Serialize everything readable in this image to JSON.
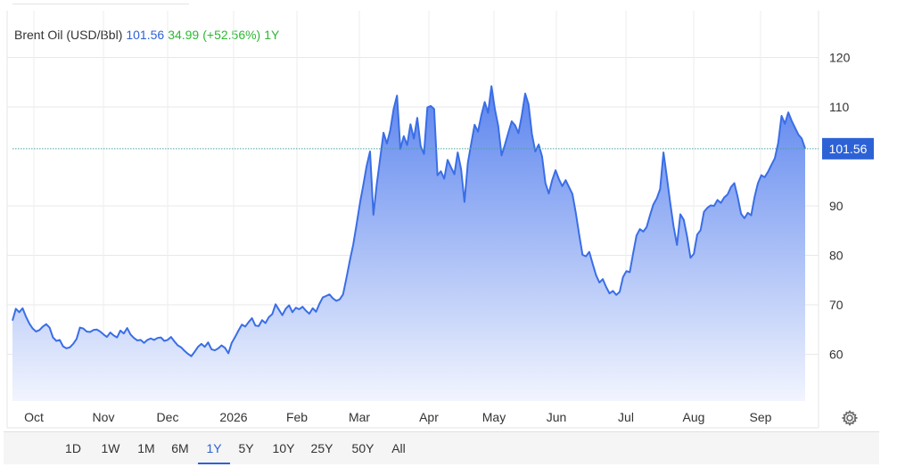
{
  "legend": {
    "name": "Brent Oil (USD/Bbl)",
    "price": "101.56",
    "change": "34.99",
    "percent": "(+52.56%)",
    "period": "1Y"
  },
  "ranges": {
    "items": [
      "1D",
      "1W",
      "1M",
      "6M",
      "1Y",
      "5Y",
      "10Y",
      "25Y",
      "50Y",
      "All"
    ],
    "active": "1Y"
  },
  "settings_icon": "gear-icon",
  "colors": {
    "line": "#3a6ee6",
    "fill_top": "#5b84ee",
    "fill_bottom": "#f2f5fe",
    "badge": "#2d62d6",
    "positive": "#2db832"
  },
  "chart_data": {
    "type": "area",
    "title": "",
    "xlabel": "",
    "ylabel": "",
    "x_tick_labels": [
      "Oct",
      "Nov",
      "Dec",
      "2026",
      "Feb",
      "Mar",
      "Apr",
      "May",
      "Jun",
      "Jul",
      "Aug",
      "Sep"
    ],
    "y_tick_labels": [
      "120",
      "110",
      "90",
      "80",
      "70",
      "60"
    ],
    "ylim": [
      51,
      122
    ],
    "grid": true,
    "last_value_label": "101.56",
    "series": [
      {
        "values": [
          66.8,
          69.2,
          68.5,
          69.3,
          67.6,
          66.2,
          65.2,
          64.6,
          64.9,
          65.6,
          66.1,
          65.4,
          63.4,
          62.7,
          62.9,
          61.6,
          61.2,
          61.4,
          62.1,
          63.1,
          65.4,
          65.2,
          64.6,
          64.5,
          64.9,
          65.0,
          64.6,
          64.0,
          63.5,
          64.4,
          63.8,
          63.4,
          64.8,
          64.2,
          65.3,
          64.0,
          63.3,
          62.8,
          62.9,
          62.3,
          62.9,
          63.2,
          62.9,
          63.3,
          63.4,
          62.7,
          62.9,
          63.5,
          62.6,
          61.8,
          61.4,
          60.7,
          60.1,
          59.6,
          60.5,
          61.5,
          62.1,
          61.5,
          62.4,
          61.0,
          60.8,
          61.2,
          61.8,
          61.3,
          60.2,
          62.3,
          63.5,
          64.8,
          66.0,
          65.6,
          66.5,
          67.3,
          65.8,
          65.7,
          66.9,
          66.3,
          67.5,
          68.1,
          70.1,
          69.0,
          67.9,
          69.2,
          69.9,
          68.5,
          69.4,
          69.1,
          69.6,
          68.8,
          68.2,
          69.3,
          68.6,
          70.2,
          71.5,
          71.8,
          72.1,
          71.3,
          70.8,
          71.1,
          72.1,
          75.4,
          78.9,
          82.1,
          86.2,
          90.5,
          94.2,
          98.1,
          101.0,
          88.2,
          94.4,
          99.6,
          104.8,
          102.6,
          105.3,
          109.6,
          112.3,
          101.5,
          104.1,
          102.3,
          106.5,
          103.6,
          107.8,
          102.1,
          100.5,
          109.9,
          110.2,
          109.6,
          96.2,
          97.0,
          95.5,
          99.3,
          97.8,
          96.4,
          100.8,
          97.4,
          90.8,
          98.7,
          102.6,
          106.4,
          105.0,
          108.3,
          111.0,
          108.8,
          114.2,
          109.6,
          106.2,
          100.2,
          102.4,
          104.8,
          107.1,
          106.3,
          104.7,
          108.3,
          112.7,
          110.5,
          104.5,
          101.0,
          102.4,
          100.0,
          94.6,
          92.5,
          95.2,
          97.2,
          95.4,
          94.0,
          95.2,
          93.8,
          92.4,
          88.6,
          84.2,
          80.1,
          79.8,
          80.7,
          78.3,
          76.0,
          74.5,
          75.2,
          73.6,
          72.3,
          72.8,
          72.0,
          72.6,
          75.6,
          76.8,
          76.6,
          80.4,
          84.0,
          85.3,
          84.8,
          85.7,
          88.1,
          90.3,
          91.5,
          93.4,
          100.8,
          95.8,
          90.6,
          85.8,
          82.1,
          88.3,
          87.2,
          83.8,
          79.5,
          80.3,
          84.2,
          85.1,
          88.8,
          89.6,
          90.1,
          90.0,
          91.2,
          90.6,
          91.7,
          92.3,
          93.8,
          94.6,
          91.8,
          88.4,
          87.5,
          88.6,
          88.1,
          91.8,
          94.6,
          96.2,
          95.8,
          96.9,
          98.3,
          99.6,
          102.7,
          108.2,
          106.6,
          108.9,
          107.2,
          105.8,
          104.4,
          103.6,
          101.56
        ]
      }
    ]
  }
}
